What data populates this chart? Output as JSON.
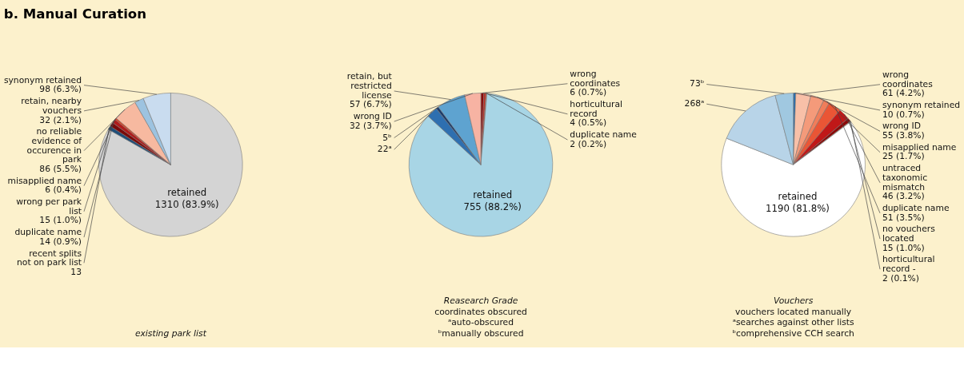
{
  "chart_data": [
    {
      "type": "pie",
      "title": "b. Manual Curation",
      "categories": [
        "retained",
        "recent splits not on park list",
        "wrong per park list",
        "duplicate name",
        "misapplied name",
        "no reliable evidence of occurence in park",
        "retain, nearby vouchers",
        "synonym retained"
      ],
      "values": [
        1310,
        13,
        15,
        14,
        6,
        86,
        32,
        98
      ],
      "colors": [
        "#d4d4d4",
        "#1f4e79",
        "#7a0a0a",
        "#b01c1c",
        "#e0401f",
        "#f7b9a0",
        "#9dc3e0",
        "#c9dcef"
      ],
      "value_labels": [
        "1310 (83.9%)",
        "13",
        "15 (1.0%)",
        "14 (0.9%)",
        "6 (0.4%)",
        "86 (5.5%)",
        "32 (2.1%)",
        "98 (6.3%)"
      ],
      "annotations": [
        "existing park list"
      ]
    },
    {
      "type": "pie",
      "categories": [
        "wrong coordinates",
        "horticultural record",
        "duplicate name",
        "retained",
        null,
        null,
        "retain, but restricted license",
        "wrong ID"
      ],
      "values": [
        6,
        4,
        2,
        755,
        22,
        5,
        57,
        32
      ],
      "colors": [
        "#8b0a0a",
        "#c0281e",
        "#e04a2a",
        "#a8d5e5",
        "#2e6fb0",
        "#1a3a6b",
        "#5ea3d0",
        "#f7b3a3"
      ],
      "value_labels": [
        "6 (0.7%)",
        "4 (0.5%)",
        "2 (0.2%)",
        "755 (88.2%)",
        "22ᵃ",
        "5ᵇ",
        "57 (6.7%)",
        "32 (3.7%)"
      ],
      "annotations": [
        "Reasearch Grade",
        "coordinates obscured",
        "ᵃauto-obscured",
        "ᵇmanually obscured"
      ]
    },
    {
      "type": "pie",
      "categories": [
        "synonym retained",
        "wrong coordinates",
        "wrong ID",
        "misapplied name",
        "duplicate name",
        "untraced taxonomic mismatch",
        "no vouchers located",
        "horticultural record -",
        "retained",
        null,
        null
      ],
      "values": [
        10,
        61,
        55,
        25,
        51,
        46,
        15,
        2,
        1190,
        268,
        73
      ],
      "colors": [
        "#2a6fae",
        "#f8c0a8",
        "#f49a7a",
        "#f07d5a",
        "#ea5535",
        "#c01818",
        "#8b0a0a",
        "#e8a060",
        "#ffffff",
        "#b8d4e8",
        "#a0c8e0"
      ],
      "value_labels": [
        "10 (0.7%)",
        "61 (4.2%)",
        "55 (3.8%)",
        "25 (1.7%)",
        "51 (3.5%)",
        "46 (3.2%)",
        "15 (1.0%)",
        "2 (0.1%)",
        "1190 (81.8%)",
        "268ᵃ",
        "73ᵇ"
      ],
      "annotations": [
        "Vouchers",
        "vouchers located manually",
        "ᵃsearches against other lists",
        "ᵇcomprehensive CCH search"
      ]
    }
  ]
}
